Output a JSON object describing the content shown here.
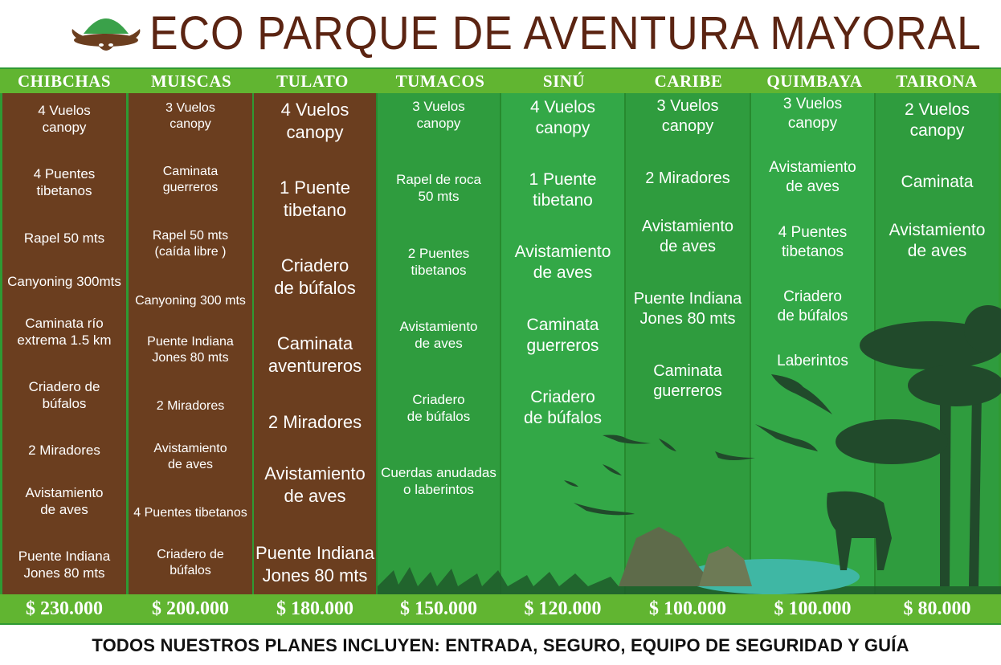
{
  "title": "ECO PARQUE DE AVENTURA MAYORAL",
  "footer": "TODOS NUESTROS PLANES INCLUYEN: ENTRADA, SEGURO, EQUIPO DE SEGURIDAD Y GUÍA",
  "plans": [
    {
      "name": "CHIBCHAS",
      "price": "$ 230.000",
      "items": [
        "4 Vuelos\ncanopy",
        "4 Puentes\ntibetanos",
        "Rapel 50 mts",
        "Canyoning 300mts",
        "Caminata río\nextrema 1.5 km",
        "Criadero de\nbúfalos",
        "2 Miradores",
        "Avistamiento\nde aves",
        "Puente Indiana\nJones 80 mts"
      ]
    },
    {
      "name": "MUISCAS",
      "price": "$ 200.000",
      "items": [
        "3 Vuelos\ncanopy",
        "Caminata\nguerreros",
        "Rapel 50 mts\n(caída libre )",
        "Canyoning 300 mts",
        "Puente Indiana\nJones 80 mts",
        "2 Miradores",
        "Avistamiento\nde aves",
        "4 Puentes tibetanos",
        "Criadero de\nbúfalos"
      ]
    },
    {
      "name": "TULATO",
      "price": "$ 180.000",
      "items": [
        "4 Vuelos\ncanopy",
        "1 Puente\ntibetano",
        "Criadero\nde búfalos",
        "Caminata\naventureros",
        "2 Miradores",
        "Avistamiento\nde aves",
        "Puente Indiana\nJones 80 mts"
      ]
    },
    {
      "name": "TUMACOS",
      "price": "$ 150.000",
      "items": [
        "3 Vuelos\ncanopy",
        "Rapel de roca\n50 mts",
        "2 Puentes\ntibetanos",
        "Avistamiento\nde aves",
        "Criadero\nde búfalos",
        "Cuerdas anudadas\no laberintos"
      ]
    },
    {
      "name": "SINÚ",
      "price": "$ 120.000",
      "items": [
        "4 Vuelos\ncanopy",
        "1 Puente\ntibetano",
        "Avistamiento\nde aves",
        "Caminata\nguerreros",
        "Criadero\nde búfalos"
      ]
    },
    {
      "name": "CARIBE",
      "price": "$ 100.000",
      "items": [
        "3 Vuelos\ncanopy",
        "2 Miradores",
        "Avistamiento\nde aves",
        "Puente Indiana\nJones 80 mts",
        "Caminata\nguerreros"
      ]
    },
    {
      "name": "QUIMBAYA",
      "price": "$ 100.000",
      "items": [
        "3 Vuelos\ncanopy",
        "Avistamiento\nde aves",
        "4 Puentes\ntibetanos",
        "Criadero\nde búfalos",
        "Laberintos"
      ]
    },
    {
      "name": "TAIRONA",
      "price": "$ 80.000",
      "items": [
        "2 Vuelos\ncanopy",
        "Caminata",
        "Avistamiento\nde aves"
      ]
    }
  ],
  "colors": {
    "title": "#5b2412",
    "brown": "#6b3e1f",
    "green": "#33a847",
    "strip": "#61b531"
  }
}
